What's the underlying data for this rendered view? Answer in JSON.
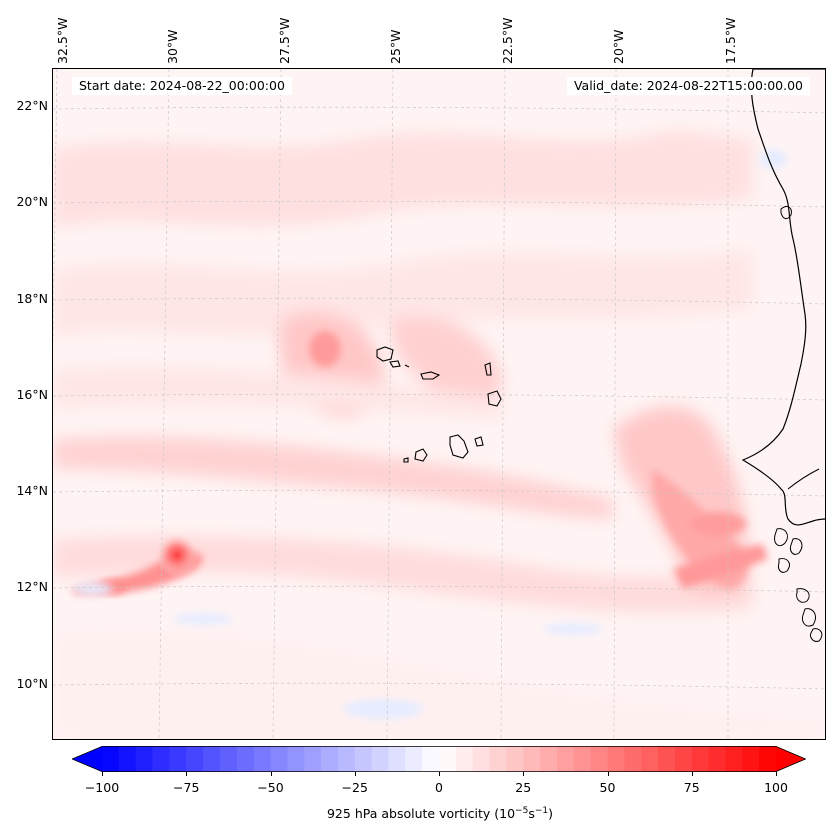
{
  "header": {
    "start_date": "Start date: 2024-08-22_00:00:00",
    "valid_date": "Valid_date: 2024-08-22T15:00:00.00"
  },
  "longitude_labels": [
    "32.5°W",
    "30°W",
    "27.5°W",
    "25°W",
    "22.5°W",
    "20°W",
    "17.5°W"
  ],
  "latitude_labels": [
    "22°N",
    "20°N",
    "18°N",
    "16°N",
    "14°N",
    "12°N",
    "10°N"
  ],
  "colorbar": {
    "label": "925 hPa absolute vorticity (10",
    "label_exp1": "−5",
    "label_mid": "s",
    "label_exp2": "−1",
    "label_end": ")",
    "ticks": [
      "−100",
      "−75",
      "−50",
      "−25",
      "0",
      "25",
      "50",
      "75",
      "100"
    ],
    "min": -100,
    "max": 100,
    "negative_color": "#0000ff",
    "positive_color": "#ff0000"
  },
  "colors": {
    "coastline": "#000000",
    "gridline": "#c8c8c8"
  }
}
